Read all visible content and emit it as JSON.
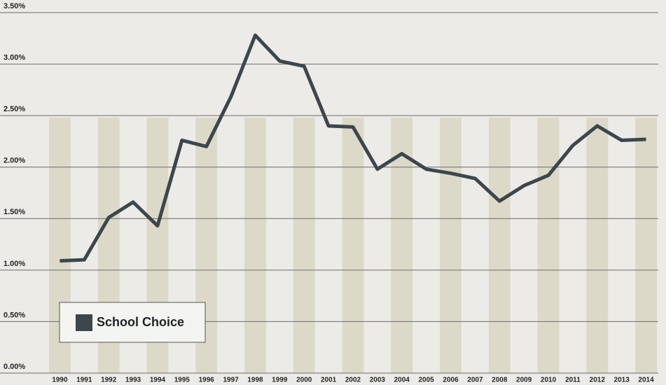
{
  "chart_data": {
    "type": "line",
    "categories": [
      "1990",
      "1991",
      "1992",
      "1993",
      "1994",
      "1995",
      "1996",
      "1997",
      "1998",
      "1999",
      "2000",
      "2001",
      "2002",
      "2003",
      "2004",
      "2005",
      "2006",
      "2007",
      "2008",
      "2009",
      "2010",
      "2011",
      "2012",
      "2013",
      "2014"
    ],
    "series": [
      {
        "name": "School Choice",
        "color": "#3b474c",
        "values": [
          1.09,
          1.1,
          1.51,
          1.66,
          1.43,
          2.26,
          2.2,
          2.68,
          3.28,
          3.03,
          2.98,
          2.4,
          2.39,
          1.98,
          2.13,
          1.98,
          1.94,
          1.89,
          1.67,
          1.82,
          1.92,
          2.21,
          2.4,
          2.26,
          2.27
        ]
      }
    ],
    "ylim": [
      0,
      3.5
    ],
    "yticks": [
      {
        "value": 0,
        "label": "0.00%"
      },
      {
        "value": 0.5,
        "label": "0.50%"
      },
      {
        "value": 1,
        "label": "1.00%"
      },
      {
        "value": 1.5,
        "label": "1.50%"
      },
      {
        "value": 2,
        "label": "2.00%"
      },
      {
        "value": 2.5,
        "label": "2.50%"
      },
      {
        "value": 3,
        "label": "3.00%"
      },
      {
        "value": 3.5,
        "label": "3.50%"
      }
    ],
    "grid": true,
    "legend": "lower left"
  }
}
